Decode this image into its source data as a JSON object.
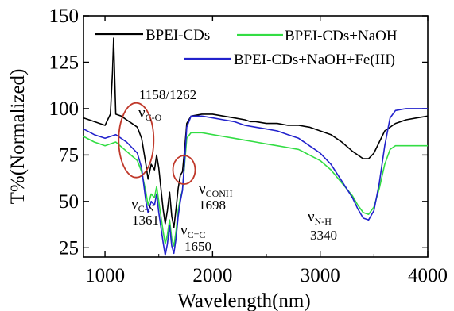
{
  "chart_data": {
    "type": "line",
    "xlabel": "Wavelength(nm)",
    "ylabel": "T%(Normalized)",
    "xlim": [
      800,
      4000
    ],
    "ylim": [
      20,
      150
    ],
    "x_ticks": [
      "1000",
      "2000",
      "3000",
      "4000"
    ],
    "x_tick_values": [
      1000,
      2000,
      3000,
      4000
    ],
    "y_ticks": [
      "25",
      "50",
      "75",
      "100",
      "125",
      "150"
    ],
    "y_tick_values": [
      25,
      50,
      75,
      100,
      125,
      150
    ],
    "legend_position": "top",
    "series": [
      {
        "name": "BPEI-CDs",
        "color": "#000000",
        "points": [
          [
            800,
            95
          ],
          [
            900,
            93
          ],
          [
            1000,
            91
          ],
          [
            1050,
            97
          ],
          [
            1070,
            120
          ],
          [
            1080,
            138
          ],
          [
            1090,
            118
          ],
          [
            1100,
            97
          ],
          [
            1150,
            96
          ],
          [
            1200,
            94
          ],
          [
            1250,
            92
          ],
          [
            1300,
            90
          ],
          [
            1340,
            84
          ],
          [
            1380,
            70
          ],
          [
            1400,
            62
          ],
          [
            1430,
            70
          ],
          [
            1460,
            67
          ],
          [
            1480,
            75
          ],
          [
            1500,
            68
          ],
          [
            1540,
            46
          ],
          [
            1560,
            38
          ],
          [
            1580,
            45
          ],
          [
            1600,
            55
          ],
          [
            1620,
            42
          ],
          [
            1640,
            36
          ],
          [
            1660,
            46
          ],
          [
            1680,
            57
          ],
          [
            1700,
            64
          ],
          [
            1720,
            66
          ],
          [
            1740,
            78
          ],
          [
            1760,
            92
          ],
          [
            1800,
            96
          ],
          [
            1900,
            97
          ],
          [
            2000,
            97
          ],
          [
            2100,
            96
          ],
          [
            2200,
            95
          ],
          [
            2300,
            94
          ],
          [
            2350,
            93
          ],
          [
            2400,
            93
          ],
          [
            2500,
            92
          ],
          [
            2600,
            92
          ],
          [
            2700,
            91
          ],
          [
            2800,
            91
          ],
          [
            2900,
            90
          ],
          [
            3000,
            88
          ],
          [
            3100,
            86
          ],
          [
            3200,
            82
          ],
          [
            3300,
            77
          ],
          [
            3400,
            73
          ],
          [
            3450,
            73
          ],
          [
            3500,
            76
          ],
          [
            3550,
            82
          ],
          [
            3600,
            88
          ],
          [
            3700,
            92
          ],
          [
            3800,
            94
          ],
          [
            3900,
            95
          ],
          [
            4000,
            96
          ]
        ]
      },
      {
        "name": "BPEI-CDs+NaOH",
        "color": "#33dd44",
        "points": [
          [
            800,
            85
          ],
          [
            900,
            82
          ],
          [
            1000,
            80
          ],
          [
            1100,
            82
          ],
          [
            1200,
            77
          ],
          [
            1300,
            72
          ],
          [
            1340,
            66
          ],
          [
            1380,
            55
          ],
          [
            1400,
            48
          ],
          [
            1430,
            54
          ],
          [
            1460,
            52
          ],
          [
            1480,
            58
          ],
          [
            1500,
            50
          ],
          [
            1540,
            34
          ],
          [
            1560,
            27
          ],
          [
            1580,
            32
          ],
          [
            1600,
            40
          ],
          [
            1620,
            30
          ],
          [
            1640,
            26
          ],
          [
            1660,
            34
          ],
          [
            1680,
            45
          ],
          [
            1700,
            52
          ],
          [
            1720,
            56
          ],
          [
            1740,
            70
          ],
          [
            1760,
            84
          ],
          [
            1800,
            87
          ],
          [
            1900,
            87
          ],
          [
            2000,
            86
          ],
          [
            2100,
            85
          ],
          [
            2200,
            84
          ],
          [
            2300,
            83
          ],
          [
            2400,
            82
          ],
          [
            2500,
            81
          ],
          [
            2600,
            80
          ],
          [
            2700,
            79
          ],
          [
            2800,
            78
          ],
          [
            2900,
            75
          ],
          [
            3000,
            72
          ],
          [
            3100,
            67
          ],
          [
            3200,
            60
          ],
          [
            3300,
            53
          ],
          [
            3350,
            48
          ],
          [
            3400,
            44
          ],
          [
            3450,
            43
          ],
          [
            3500,
            47
          ],
          [
            3550,
            57
          ],
          [
            3600,
            70
          ],
          [
            3650,
            78
          ],
          [
            3700,
            80
          ],
          [
            3800,
            80
          ],
          [
            3900,
            80
          ],
          [
            4000,
            80
          ]
        ]
      },
      {
        "name": "BPEI-CDs+NaOH+Fe(III)",
        "color": "#2222cc",
        "points": [
          [
            800,
            89
          ],
          [
            900,
            86
          ],
          [
            1000,
            84
          ],
          [
            1100,
            86
          ],
          [
            1200,
            82
          ],
          [
            1300,
            76
          ],
          [
            1340,
            68
          ],
          [
            1380,
            50
          ],
          [
            1400,
            44
          ],
          [
            1430,
            50
          ],
          [
            1460,
            48
          ],
          [
            1480,
            54
          ],
          [
            1500,
            44
          ],
          [
            1540,
            28
          ],
          [
            1560,
            21
          ],
          [
            1580,
            27
          ],
          [
            1600,
            37
          ],
          [
            1620,
            26
          ],
          [
            1640,
            22
          ],
          [
            1660,
            30
          ],
          [
            1680,
            42
          ],
          [
            1700,
            50
          ],
          [
            1720,
            56
          ],
          [
            1740,
            72
          ],
          [
            1760,
            90
          ],
          [
            1800,
            96
          ],
          [
            1900,
            96
          ],
          [
            2000,
            95
          ],
          [
            2100,
            94
          ],
          [
            2200,
            93
          ],
          [
            2300,
            91
          ],
          [
            2400,
            90
          ],
          [
            2500,
            89
          ],
          [
            2600,
            88
          ],
          [
            2700,
            86
          ],
          [
            2800,
            84
          ],
          [
            2900,
            80
          ],
          [
            3000,
            76
          ],
          [
            3100,
            70
          ],
          [
            3200,
            61
          ],
          [
            3300,
            52
          ],
          [
            3350,
            46
          ],
          [
            3400,
            41
          ],
          [
            3450,
            40
          ],
          [
            3500,
            45
          ],
          [
            3550,
            60
          ],
          [
            3600,
            80
          ],
          [
            3650,
            95
          ],
          [
            3700,
            99
          ],
          [
            3800,
            100
          ],
          [
            3900,
            100
          ],
          [
            4000,
            100
          ]
        ]
      }
    ],
    "annotations": [
      {
        "id": "c-o-wavenumbers",
        "text": "1158/1262"
      },
      {
        "id": "c-o-label",
        "sym": "ν",
        "sub": "C-O"
      },
      {
        "id": "c-n-label",
        "sym": "ν",
        "sub": "C-N"
      },
      {
        "id": "c-n-value",
        "text": "1361"
      },
      {
        "id": "c-c-label",
        "sym": "ν",
        "sub": "C=C"
      },
      {
        "id": "c-c-value",
        "text": "1650"
      },
      {
        "id": "conh-label",
        "sym": "ν",
        "sub": "CONH"
      },
      {
        "id": "conh-value",
        "text": "1698"
      },
      {
        "id": "n-h-label",
        "sym": "ν",
        "sub": "N-H"
      },
      {
        "id": "n-h-value",
        "text": "3340"
      }
    ],
    "circle_color": "#c0392b"
  }
}
